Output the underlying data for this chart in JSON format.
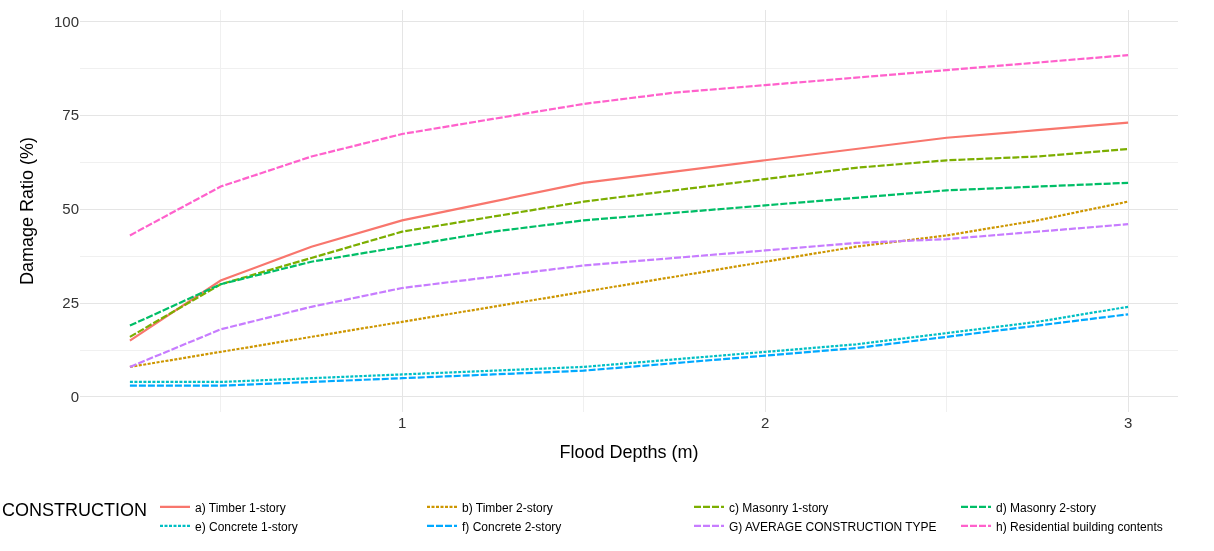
{
  "chart_data": {
    "type": "line",
    "xlabel": "Flood Depths (m)",
    "ylabel": "Damage Ratio (%)",
    "legend_title": "CONSTRUCTION",
    "x": [
      0.25,
      0.5,
      0.75,
      1,
      1.25,
      1.5,
      1.75,
      2,
      2.25,
      2.5,
      2.75,
      3
    ],
    "series": [
      {
        "name": "a) Timber 1-story",
        "color": "#f8766d",
        "line_style": "solid",
        "values": [
          15,
          31,
          40,
          47,
          52,
          57,
          60,
          63,
          66,
          69,
          71,
          73
        ]
      },
      {
        "name": "b) Timber 2-story",
        "color": "#cd9600",
        "line_style": "dotted",
        "values": [
          8,
          12,
          16,
          20,
          24,
          28,
          32,
          36,
          40,
          43,
          47,
          52
        ]
      },
      {
        "name": "c) Masonry 1-story",
        "color": "#7cae00",
        "line_style": "dashed",
        "values": [
          16,
          30,
          37,
          44,
          48,
          52,
          55,
          58,
          61,
          63,
          64,
          66
        ]
      },
      {
        "name": "d) Masonry 2-story",
        "color": "#00be67",
        "line_style": "dashed",
        "values": [
          19,
          30,
          36,
          40,
          44,
          47,
          49,
          51,
          53,
          55,
          56,
          57
        ]
      },
      {
        "name": "e) Concrete 1-story",
        "color": "#00bfc4",
        "line_style": "dotted",
        "values": [
          4,
          4,
          5,
          6,
          7,
          8,
          10,
          12,
          14,
          17,
          20,
          24
        ]
      },
      {
        "name": "f) Concrete 2-story",
        "color": "#00a9ff",
        "line_style": "dashed",
        "values": [
          3,
          3,
          4,
          5,
          6,
          7,
          9,
          11,
          13,
          16,
          19,
          22
        ]
      },
      {
        "name": "G) AVERAGE CONSTRUCTION TYPE",
        "color": "#c77cff",
        "line_style": "dashed",
        "values": [
          8,
          18,
          24,
          29,
          32,
          35,
          37,
          39,
          41,
          42,
          44,
          46
        ]
      },
      {
        "name": "h) Residential building contents",
        "color": "#ff61cc",
        "line_style": "dashed",
        "values": [
          43,
          56,
          64,
          70,
          74,
          78,
          81,
          83,
          85,
          87,
          89,
          91
        ]
      }
    ],
    "xlim": [
      0.1125,
      3.1375
    ],
    "xticks": [
      1,
      2,
      3
    ],
    "ylim": [
      -4,
      103
    ],
    "yticks": [
      0,
      25,
      50,
      75,
      100
    ],
    "grid": true,
    "legend": "bottom",
    "marker": "none"
  }
}
